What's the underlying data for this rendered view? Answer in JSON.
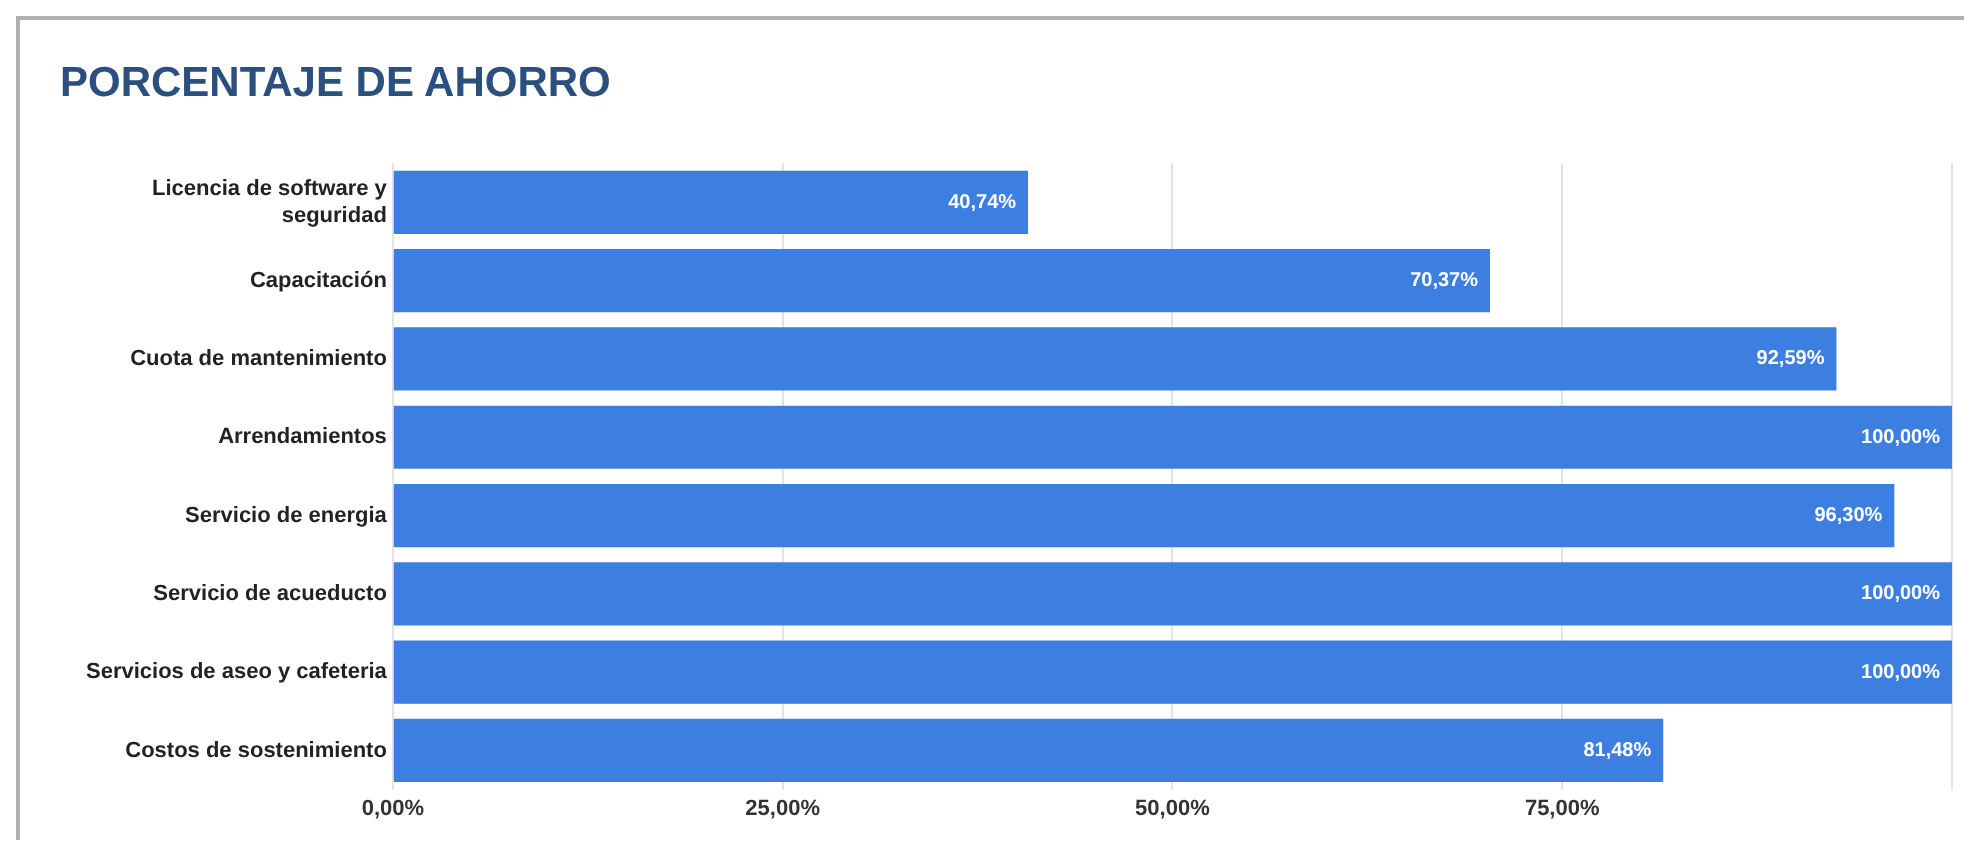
{
  "chart_data": {
    "type": "bar",
    "orientation": "horizontal",
    "title": "PORCENTAJE DE AHORRO",
    "categories": [
      "Licencia de software y seguridad",
      "Capacitación",
      "Cuota de mantenimiento",
      "Arrendamientos",
      "Servicio de energia",
      "Servicio de acueducto",
      "Servicios de aseo y cafeteria",
      "Costos de sostenimiento"
    ],
    "values": [
      40.74,
      70.37,
      92.59,
      100,
      96.3,
      100,
      100,
      81.48
    ],
    "value_labels": [
      "40,74%",
      "70,37%",
      "92,59%",
      "100,00%",
      "96,30%",
      "100,00%",
      "100,00%",
      "81,48%"
    ],
    "color": "#3c7fe0",
    "xlim": [
      0,
      100
    ],
    "xticks": [
      {
        "value": 0,
        "label": "0,00%"
      },
      {
        "value": 25,
        "label": "25,00%"
      },
      {
        "value": 50,
        "label": "50,00%"
      },
      {
        "value": 75,
        "label": "75,00%"
      },
      {
        "value": 100,
        "label": null
      }
    ],
    "grid": "x",
    "legend": false
  }
}
